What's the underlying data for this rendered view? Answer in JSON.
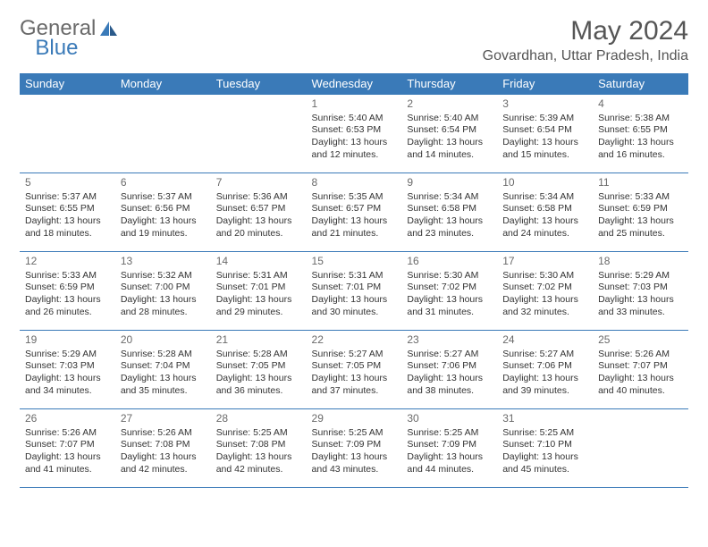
{
  "brand": {
    "part1": "General",
    "part2": "Blue"
  },
  "title": "May 2024",
  "location": "Govardhan, Uttar Pradesh, India",
  "colors": {
    "header_bg": "#3a7ab8",
    "header_text": "#ffffff",
    "border": "#3a7ab8",
    "logo_gray": "#6a6a6a",
    "logo_blue": "#3a7ab8",
    "body_text": "#333333",
    "daynum": "#6a6a6a"
  },
  "weekdays": [
    "Sunday",
    "Monday",
    "Tuesday",
    "Wednesday",
    "Thursday",
    "Friday",
    "Saturday"
  ],
  "weeks": [
    [
      null,
      null,
      null,
      {
        "day": "1",
        "sunrise": "Sunrise: 5:40 AM",
        "sunset": "Sunset: 6:53 PM",
        "dl1": "Daylight: 13 hours",
        "dl2": "and 12 minutes."
      },
      {
        "day": "2",
        "sunrise": "Sunrise: 5:40 AM",
        "sunset": "Sunset: 6:54 PM",
        "dl1": "Daylight: 13 hours",
        "dl2": "and 14 minutes."
      },
      {
        "day": "3",
        "sunrise": "Sunrise: 5:39 AM",
        "sunset": "Sunset: 6:54 PM",
        "dl1": "Daylight: 13 hours",
        "dl2": "and 15 minutes."
      },
      {
        "day": "4",
        "sunrise": "Sunrise: 5:38 AM",
        "sunset": "Sunset: 6:55 PM",
        "dl1": "Daylight: 13 hours",
        "dl2": "and 16 minutes."
      }
    ],
    [
      {
        "day": "5",
        "sunrise": "Sunrise: 5:37 AM",
        "sunset": "Sunset: 6:55 PM",
        "dl1": "Daylight: 13 hours",
        "dl2": "and 18 minutes."
      },
      {
        "day": "6",
        "sunrise": "Sunrise: 5:37 AM",
        "sunset": "Sunset: 6:56 PM",
        "dl1": "Daylight: 13 hours",
        "dl2": "and 19 minutes."
      },
      {
        "day": "7",
        "sunrise": "Sunrise: 5:36 AM",
        "sunset": "Sunset: 6:57 PM",
        "dl1": "Daylight: 13 hours",
        "dl2": "and 20 minutes."
      },
      {
        "day": "8",
        "sunrise": "Sunrise: 5:35 AM",
        "sunset": "Sunset: 6:57 PM",
        "dl1": "Daylight: 13 hours",
        "dl2": "and 21 minutes."
      },
      {
        "day": "9",
        "sunrise": "Sunrise: 5:34 AM",
        "sunset": "Sunset: 6:58 PM",
        "dl1": "Daylight: 13 hours",
        "dl2": "and 23 minutes."
      },
      {
        "day": "10",
        "sunrise": "Sunrise: 5:34 AM",
        "sunset": "Sunset: 6:58 PM",
        "dl1": "Daylight: 13 hours",
        "dl2": "and 24 minutes."
      },
      {
        "day": "11",
        "sunrise": "Sunrise: 5:33 AM",
        "sunset": "Sunset: 6:59 PM",
        "dl1": "Daylight: 13 hours",
        "dl2": "and 25 minutes."
      }
    ],
    [
      {
        "day": "12",
        "sunrise": "Sunrise: 5:33 AM",
        "sunset": "Sunset: 6:59 PM",
        "dl1": "Daylight: 13 hours",
        "dl2": "and 26 minutes."
      },
      {
        "day": "13",
        "sunrise": "Sunrise: 5:32 AM",
        "sunset": "Sunset: 7:00 PM",
        "dl1": "Daylight: 13 hours",
        "dl2": "and 28 minutes."
      },
      {
        "day": "14",
        "sunrise": "Sunrise: 5:31 AM",
        "sunset": "Sunset: 7:01 PM",
        "dl1": "Daylight: 13 hours",
        "dl2": "and 29 minutes."
      },
      {
        "day": "15",
        "sunrise": "Sunrise: 5:31 AM",
        "sunset": "Sunset: 7:01 PM",
        "dl1": "Daylight: 13 hours",
        "dl2": "and 30 minutes."
      },
      {
        "day": "16",
        "sunrise": "Sunrise: 5:30 AM",
        "sunset": "Sunset: 7:02 PM",
        "dl1": "Daylight: 13 hours",
        "dl2": "and 31 minutes."
      },
      {
        "day": "17",
        "sunrise": "Sunrise: 5:30 AM",
        "sunset": "Sunset: 7:02 PM",
        "dl1": "Daylight: 13 hours",
        "dl2": "and 32 minutes."
      },
      {
        "day": "18",
        "sunrise": "Sunrise: 5:29 AM",
        "sunset": "Sunset: 7:03 PM",
        "dl1": "Daylight: 13 hours",
        "dl2": "and 33 minutes."
      }
    ],
    [
      {
        "day": "19",
        "sunrise": "Sunrise: 5:29 AM",
        "sunset": "Sunset: 7:03 PM",
        "dl1": "Daylight: 13 hours",
        "dl2": "and 34 minutes."
      },
      {
        "day": "20",
        "sunrise": "Sunrise: 5:28 AM",
        "sunset": "Sunset: 7:04 PM",
        "dl1": "Daylight: 13 hours",
        "dl2": "and 35 minutes."
      },
      {
        "day": "21",
        "sunrise": "Sunrise: 5:28 AM",
        "sunset": "Sunset: 7:05 PM",
        "dl1": "Daylight: 13 hours",
        "dl2": "and 36 minutes."
      },
      {
        "day": "22",
        "sunrise": "Sunrise: 5:27 AM",
        "sunset": "Sunset: 7:05 PM",
        "dl1": "Daylight: 13 hours",
        "dl2": "and 37 minutes."
      },
      {
        "day": "23",
        "sunrise": "Sunrise: 5:27 AM",
        "sunset": "Sunset: 7:06 PM",
        "dl1": "Daylight: 13 hours",
        "dl2": "and 38 minutes."
      },
      {
        "day": "24",
        "sunrise": "Sunrise: 5:27 AM",
        "sunset": "Sunset: 7:06 PM",
        "dl1": "Daylight: 13 hours",
        "dl2": "and 39 minutes."
      },
      {
        "day": "25",
        "sunrise": "Sunrise: 5:26 AM",
        "sunset": "Sunset: 7:07 PM",
        "dl1": "Daylight: 13 hours",
        "dl2": "and 40 minutes."
      }
    ],
    [
      {
        "day": "26",
        "sunrise": "Sunrise: 5:26 AM",
        "sunset": "Sunset: 7:07 PM",
        "dl1": "Daylight: 13 hours",
        "dl2": "and 41 minutes."
      },
      {
        "day": "27",
        "sunrise": "Sunrise: 5:26 AM",
        "sunset": "Sunset: 7:08 PM",
        "dl1": "Daylight: 13 hours",
        "dl2": "and 42 minutes."
      },
      {
        "day": "28",
        "sunrise": "Sunrise: 5:25 AM",
        "sunset": "Sunset: 7:08 PM",
        "dl1": "Daylight: 13 hours",
        "dl2": "and 42 minutes."
      },
      {
        "day": "29",
        "sunrise": "Sunrise: 5:25 AM",
        "sunset": "Sunset: 7:09 PM",
        "dl1": "Daylight: 13 hours",
        "dl2": "and 43 minutes."
      },
      {
        "day": "30",
        "sunrise": "Sunrise: 5:25 AM",
        "sunset": "Sunset: 7:09 PM",
        "dl1": "Daylight: 13 hours",
        "dl2": "and 44 minutes."
      },
      {
        "day": "31",
        "sunrise": "Sunrise: 5:25 AM",
        "sunset": "Sunset: 7:10 PM",
        "dl1": "Daylight: 13 hours",
        "dl2": "and 45 minutes."
      },
      null
    ]
  ]
}
